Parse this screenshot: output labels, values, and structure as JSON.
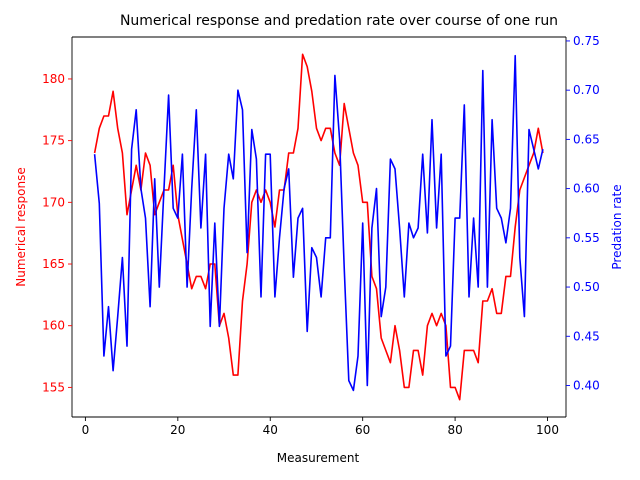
{
  "chart_data": {
    "type": "line",
    "title": "Numerical response and predation rate over course of one run",
    "xlabel": "Measurement",
    "ylabel_left": "Numerical response",
    "ylabel_right": "Predation rate",
    "xlim": [
      -2.9,
      104
    ],
    "ylim_left": [
      152.6,
      183.4
    ],
    "ylim_right": [
      0.368,
      0.754
    ],
    "x_ticks": [
      0,
      20,
      40,
      60,
      80,
      100
    ],
    "y_ticks_left": [
      155,
      160,
      165,
      170,
      175,
      180
    ],
    "y_ticks_right": [
      0.4,
      0.45,
      0.5,
      0.55,
      0.6,
      0.65,
      0.7,
      0.75
    ],
    "colors": {
      "left": "#ff0000",
      "right": "#0000ff",
      "axis": "#000000"
    },
    "series": [
      {
        "name": "Numerical response",
        "axis": "left",
        "color": "#ff0000",
        "x": [
          2,
          3,
          4,
          5,
          6,
          7,
          8,
          9,
          10,
          11,
          12,
          13,
          14,
          15,
          16,
          17,
          18,
          19,
          20,
          21,
          22,
          23,
          24,
          25,
          26,
          27,
          28,
          29,
          30,
          31,
          32,
          33,
          34,
          35,
          36,
          37,
          38,
          39,
          40,
          41,
          42,
          43,
          44,
          45,
          46,
          47,
          48,
          49,
          50,
          51,
          52,
          53,
          54,
          55,
          56,
          57,
          58,
          59,
          60,
          61,
          62,
          63,
          64,
          65,
          66,
          67,
          68,
          69,
          70,
          71,
          72,
          73,
          74,
          75,
          76,
          77,
          78,
          79,
          80,
          81,
          82,
          83,
          84,
          85,
          86,
          87,
          88,
          89,
          90,
          91,
          92,
          93,
          94,
          95,
          96,
          97,
          98,
          99
        ],
        "y": [
          174,
          176,
          177,
          177,
          179,
          176,
          174,
          169,
          171,
          173,
          171,
          174,
          173,
          169,
          170,
          171,
          171,
          173,
          169,
          167,
          165,
          163,
          164,
          164,
          163,
          165,
          165,
          160,
          161,
          159,
          156,
          156,
          162,
          165,
          170,
          171,
          170,
          171,
          170,
          168,
          171,
          171,
          174,
          174,
          176,
          182,
          181,
          179,
          176,
          175,
          176,
          176,
          174,
          173,
          178,
          176,
          174,
          173,
          170,
          170,
          164,
          163,
          159,
          158,
          157,
          160,
          158,
          155,
          155,
          158,
          158,
          156,
          160,
          161,
          160,
          161,
          160,
          155,
          155,
          154,
          158,
          158,
          158,
          157,
          162,
          162,
          163,
          161,
          161,
          164,
          164,
          168,
          171,
          172,
          173,
          174,
          176,
          174
        ]
      },
      {
        "name": "Predation rate",
        "axis": "right",
        "color": "#0000ff",
        "x": [
          2,
          3,
          4,
          5,
          6,
          7,
          8,
          9,
          10,
          11,
          12,
          13,
          14,
          15,
          16,
          17,
          18,
          19,
          20,
          21,
          22,
          23,
          24,
          25,
          26,
          27,
          28,
          29,
          30,
          31,
          32,
          33,
          34,
          35,
          36,
          37,
          38,
          39,
          40,
          41,
          42,
          43,
          44,
          45,
          46,
          47,
          48,
          49,
          50,
          51,
          52,
          53,
          54,
          55,
          56,
          57,
          58,
          59,
          60,
          61,
          62,
          63,
          64,
          65,
          66,
          67,
          68,
          69,
          70,
          71,
          72,
          73,
          74,
          75,
          76,
          77,
          78,
          79,
          80,
          81,
          82,
          83,
          84,
          85,
          86,
          87,
          88,
          89,
          90,
          91,
          92,
          93,
          94,
          95,
          96,
          97,
          98,
          99
        ],
        "y": [
          0.635,
          0.585,
          0.43,
          0.48,
          0.415,
          0.47,
          0.53,
          0.44,
          0.64,
          0.68,
          0.6,
          0.57,
          0.48,
          0.61,
          0.5,
          0.6,
          0.695,
          0.58,
          0.57,
          0.635,
          0.5,
          0.6,
          0.68,
          0.56,
          0.635,
          0.46,
          0.565,
          0.46,
          0.58,
          0.635,
          0.61,
          0.7,
          0.68,
          0.535,
          0.66,
          0.63,
          0.49,
          0.635,
          0.635,
          0.49,
          0.55,
          0.6,
          0.62,
          0.51,
          0.57,
          0.58,
          0.455,
          0.54,
          0.53,
          0.49,
          0.55,
          0.55,
          0.715,
          0.65,
          0.52,
          0.405,
          0.395,
          0.43,
          0.565,
          0.4,
          0.56,
          0.6,
          0.47,
          0.5,
          0.63,
          0.62,
          0.56,
          0.49,
          0.565,
          0.55,
          0.56,
          0.635,
          0.555,
          0.67,
          0.56,
          0.635,
          0.43,
          0.44,
          0.57,
          0.57,
          0.685,
          0.49,
          0.57,
          0.5,
          0.72,
          0.5,
          0.67,
          0.58,
          0.57,
          0.545,
          0.58,
          0.735,
          0.53,
          0.47,
          0.66,
          0.64,
          0.62,
          0.64
        ]
      }
    ]
  }
}
